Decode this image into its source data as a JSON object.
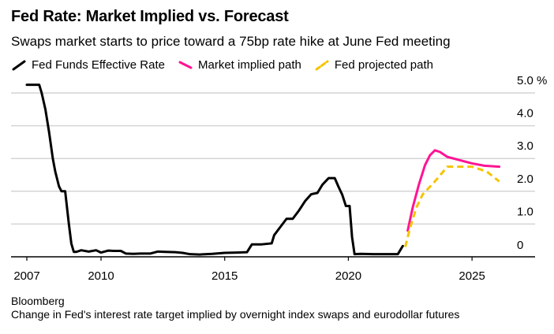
{
  "chart_data": {
    "type": "line",
    "title": "Fed Rate: Market Implied vs. Forecast",
    "subtitle": "Swaps market starts to price toward a 75bp rate hike at June Fed meeting",
    "xlabel": "",
    "ylabel": "",
    "xlim": [
      2007,
      2026.4
    ],
    "ylim": [
      0,
      5
    ],
    "x_ticks": [
      2007,
      2010,
      2015,
      2020,
      2025
    ],
    "x_tick_labels": [
      "2007",
      "2010",
      "2015",
      "2020",
      "2025"
    ],
    "y_ticks": [
      0,
      1,
      2,
      3,
      4,
      5
    ],
    "y_tick_labels": [
      "0",
      "1.0",
      "2.0",
      "3.0",
      "4.0",
      "5.0 %"
    ],
    "grid": true,
    "legend_position": "top-left",
    "series": [
      {
        "name": "Fed Funds Effective Rate",
        "color": "#000000",
        "style": "solid",
        "x": [
          2007.0,
          2007.5,
          2007.6,
          2007.75,
          2007.9,
          2008.05,
          2008.15,
          2008.3,
          2008.4,
          2008.55,
          2008.7,
          2008.8,
          2008.9,
          2009.0,
          2009.2,
          2009.5,
          2009.8,
          2010.0,
          2010.3,
          2010.5,
          2010.8,
          2011.0,
          2011.3,
          2011.6,
          2012.0,
          2012.3,
          2012.6,
          2013.0,
          2013.3,
          2013.6,
          2014.0,
          2014.5,
          2015.0,
          2015.5,
          2015.9,
          2016.1,
          2016.5,
          2016.9,
          2017.0,
          2017.25,
          2017.5,
          2017.75,
          2018.0,
          2018.25,
          2018.5,
          2018.75,
          2018.95,
          2019.2,
          2019.45,
          2019.6,
          2019.75,
          2019.9,
          2020.05,
          2020.15,
          2020.25,
          2020.5,
          2021.0,
          2021.5,
          2022.0,
          2022.2
        ],
        "values": [
          5.25,
          5.25,
          5.0,
          4.5,
          3.8,
          3.0,
          2.6,
          2.15,
          2.0,
          2.0,
          1.0,
          0.4,
          0.15,
          0.15,
          0.2,
          0.16,
          0.2,
          0.13,
          0.19,
          0.18,
          0.18,
          0.1,
          0.09,
          0.1,
          0.1,
          0.16,
          0.15,
          0.14,
          0.12,
          0.08,
          0.07,
          0.09,
          0.12,
          0.13,
          0.14,
          0.38,
          0.38,
          0.41,
          0.66,
          0.91,
          1.16,
          1.16,
          1.41,
          1.7,
          1.91,
          1.95,
          2.2,
          2.4,
          2.4,
          2.14,
          1.9,
          1.55,
          1.55,
          0.6,
          0.08,
          0.09,
          0.08,
          0.08,
          0.08,
          0.33
        ]
      },
      {
        "name": "Market implied path",
        "color": "#ff1493",
        "style": "solid",
        "x": [
          2022.4,
          2022.6,
          2022.85,
          2023.1,
          2023.3,
          2023.5,
          2023.7,
          2024.0,
          2024.5,
          2025.0,
          2025.5,
          2026.1
        ],
        "values": [
          0.8,
          1.5,
          2.2,
          2.8,
          3.1,
          3.25,
          3.2,
          3.05,
          2.95,
          2.85,
          2.78,
          2.75
        ]
      },
      {
        "name": "Fed projected path",
        "color": "#f5c400",
        "style": "dashed",
        "x": [
          2022.3,
          2022.5,
          2022.75,
          2023.0,
          2023.5,
          2024.0,
          2025.0,
          2025.6,
          2026.1
        ],
        "values": [
          0.3,
          0.9,
          1.5,
          1.9,
          2.3,
          2.75,
          2.75,
          2.6,
          2.3
        ]
      }
    ]
  },
  "source": "Bloomberg",
  "note": "Change in Fed's interest rate target implied by overnight index swaps and eurodollar futures"
}
